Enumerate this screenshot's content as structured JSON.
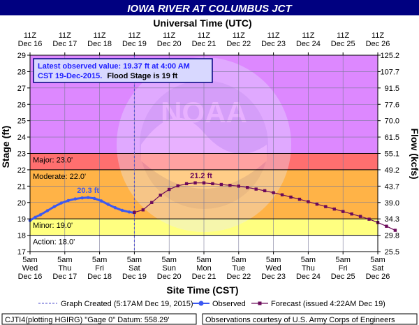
{
  "title": "IOWA RIVER AT COLUMBUS JCT",
  "colors": {
    "title_bar": "#000080",
    "major": "#ff6f6f",
    "moderate": "#ffb347",
    "minor": "#ffff80",
    "above_major": "#dd88ff",
    "observed": "#3b58f2",
    "forecast": "#6b0a5a",
    "hydrograph_line": "#7a7a99"
  },
  "info_box": {
    "line1": "Latest observed value: 19.37 ft at 4:00 AM",
    "line2_part1": "CST 19-Dec-2015.",
    "line2_part2": "Flood Stage is 19 ft"
  },
  "legend": {
    "graph_created": "Graph Created (5:17AM Dec 19, 2015)",
    "observed": "Observed",
    "forecast": "Forecast (issued 4:22AM Dec 19)"
  },
  "footer": {
    "left": "CJTI4(plotting HGIRG) \"Gage 0\" Datum:  558.29'",
    "right": "Observations courtesy of U.S. Army Corps of Engineers"
  },
  "chart_data": {
    "type": "line",
    "title": "IOWA RIVER AT COLUMBUS JCT",
    "xlabel": "Site Time (CST)",
    "x2label": "Universal Time (UTC)",
    "ylabel": "Stage (ft)",
    "y2label": "Flow (kcfs)",
    "ylim": [
      17,
      29
    ],
    "grid": true,
    "y_ticks": [
      17,
      18,
      19,
      20,
      21,
      22,
      23,
      24,
      25,
      26,
      27,
      28,
      29
    ],
    "flow_ticks": [
      "25.5",
      "29.8",
      "34.3",
      "39.0",
      "43.7",
      "49.2",
      "55.1",
      "61.5",
      "70.0",
      "77.6",
      "91.5",
      "107.7",
      "125.2"
    ],
    "x_ticks_bottom": [
      [
        "5am",
        "Wed",
        "Dec 16"
      ],
      [
        "5am",
        "Thu",
        "Dec 17"
      ],
      [
        "5am",
        "Fri",
        "Dec 18"
      ],
      [
        "5am",
        "Sat",
        "Dec 19"
      ],
      [
        "5am",
        "Sun",
        "Dec 20"
      ],
      [
        "5am",
        "Mon",
        "Dec 21"
      ],
      [
        "5am",
        "Tue",
        "Dec 22"
      ],
      [
        "5am",
        "Wed",
        "Dec 23"
      ],
      [
        "5am",
        "Thu",
        "Dec 24"
      ],
      [
        "5am",
        "Fri",
        "Dec 25"
      ],
      [
        "5am",
        "Sat",
        "Dec 26"
      ]
    ],
    "x_ticks_top": [
      [
        "11Z",
        "Dec 16"
      ],
      [
        "11Z",
        "Dec 17"
      ],
      [
        "11Z",
        "Dec 18"
      ],
      [
        "11Z",
        "Dec 19"
      ],
      [
        "11Z",
        "Dec 20"
      ],
      [
        "11Z",
        "Dec 21"
      ],
      [
        "11Z",
        "Dec 22"
      ],
      [
        "11Z",
        "Dec 23"
      ],
      [
        "11Z",
        "Dec 24"
      ],
      [
        "11Z",
        "Dec 25"
      ],
      [
        "11Z",
        "Dec 26"
      ]
    ],
    "flood_categories": [
      {
        "name": "Action",
        "label": "Action: 18.0'",
        "stage": 18.0
      },
      {
        "name": "Minor",
        "label": "Minor: 19.0'",
        "stage": 19.0
      },
      {
        "name": "Moderate",
        "label": "Moderate: 22.0'",
        "stage": 22.0
      },
      {
        "name": "Major",
        "label": "Major: 23.0'",
        "stage": 23.0
      }
    ],
    "graph_created_day": 3.0,
    "annotations": [
      {
        "text": "20.3 ft",
        "day": 1.67,
        "stage": 20.5
      },
      {
        "text": "21.2 ft",
        "day": 4.92,
        "stage": 21.4
      }
    ],
    "series": [
      {
        "name": "Observed",
        "points": [
          [
            0.0,
            18.9
          ],
          [
            0.15,
            19.1
          ],
          [
            0.3,
            19.25
          ],
          [
            0.5,
            19.5
          ],
          [
            0.7,
            19.75
          ],
          [
            0.9,
            19.97
          ],
          [
            1.1,
            20.12
          ],
          [
            1.3,
            20.22
          ],
          [
            1.5,
            20.28
          ],
          [
            1.67,
            20.3
          ],
          [
            1.85,
            20.25
          ],
          [
            2.05,
            20.1
          ],
          [
            2.25,
            19.88
          ],
          [
            2.45,
            19.68
          ],
          [
            2.65,
            19.52
          ],
          [
            2.85,
            19.42
          ],
          [
            3.0,
            19.37
          ]
        ]
      },
      {
        "name": "Forecast",
        "points": [
          [
            3.0,
            19.4
          ],
          [
            3.25,
            19.55
          ],
          [
            3.5,
            20.0
          ],
          [
            3.75,
            20.45
          ],
          [
            4.0,
            20.8
          ],
          [
            4.25,
            21.02
          ],
          [
            4.5,
            21.15
          ],
          [
            4.75,
            21.2
          ],
          [
            5.0,
            21.2
          ],
          [
            5.25,
            21.15
          ],
          [
            5.5,
            21.1
          ],
          [
            5.75,
            21.05
          ],
          [
            6.0,
            21.0
          ],
          [
            6.25,
            20.92
          ],
          [
            6.5,
            20.82
          ],
          [
            6.75,
            20.72
          ],
          [
            7.0,
            20.6
          ],
          [
            7.25,
            20.47
          ],
          [
            7.5,
            20.33
          ],
          [
            7.75,
            20.2
          ],
          [
            8.0,
            20.05
          ],
          [
            8.25,
            19.9
          ],
          [
            8.5,
            19.75
          ],
          [
            8.75,
            19.6
          ],
          [
            9.0,
            19.45
          ],
          [
            9.25,
            19.3
          ],
          [
            9.5,
            19.15
          ],
          [
            9.75,
            18.98
          ],
          [
            10.0,
            18.78
          ],
          [
            10.25,
            18.55
          ],
          [
            10.5,
            18.3
          ]
        ]
      }
    ]
  }
}
